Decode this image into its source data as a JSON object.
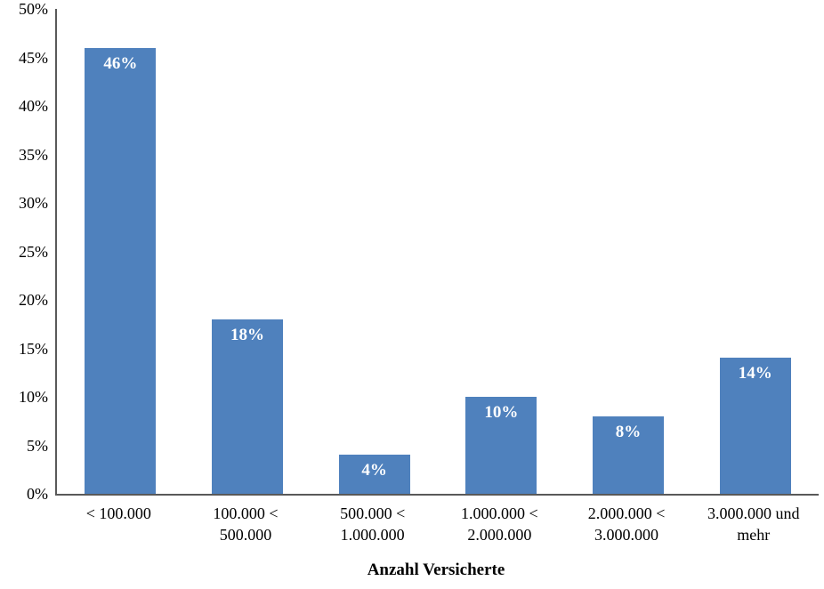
{
  "chart_data": {
    "type": "bar",
    "title": "",
    "categories": [
      "< 100.000",
      "100.000 <\n500.000",
      "500.000 <\n1.000.000",
      "1.000.000 <\n2.000.000",
      "2.000.000 <\n3.000.000",
      "3.000.000 und\nmehr"
    ],
    "values": [
      46,
      18,
      4,
      10,
      8,
      14
    ],
    "bar_labels": [
      "46%",
      "18%",
      "4%",
      "10%",
      "8%",
      "14%"
    ],
    "xlabel": "Anzahl Versicherte",
    "ylabel": "",
    "ylim": [
      0,
      50
    ],
    "y_tick_step": 5,
    "y_ticks": [
      "0%",
      "5%",
      "10%",
      "15%",
      "20%",
      "25%",
      "30%",
      "35%",
      "40%",
      "45%",
      "50%"
    ],
    "grid": false,
    "legend": false,
    "bar_color": "#4f81bd",
    "bar_label_color": "#ffffff",
    "axis_color": "#595959"
  }
}
